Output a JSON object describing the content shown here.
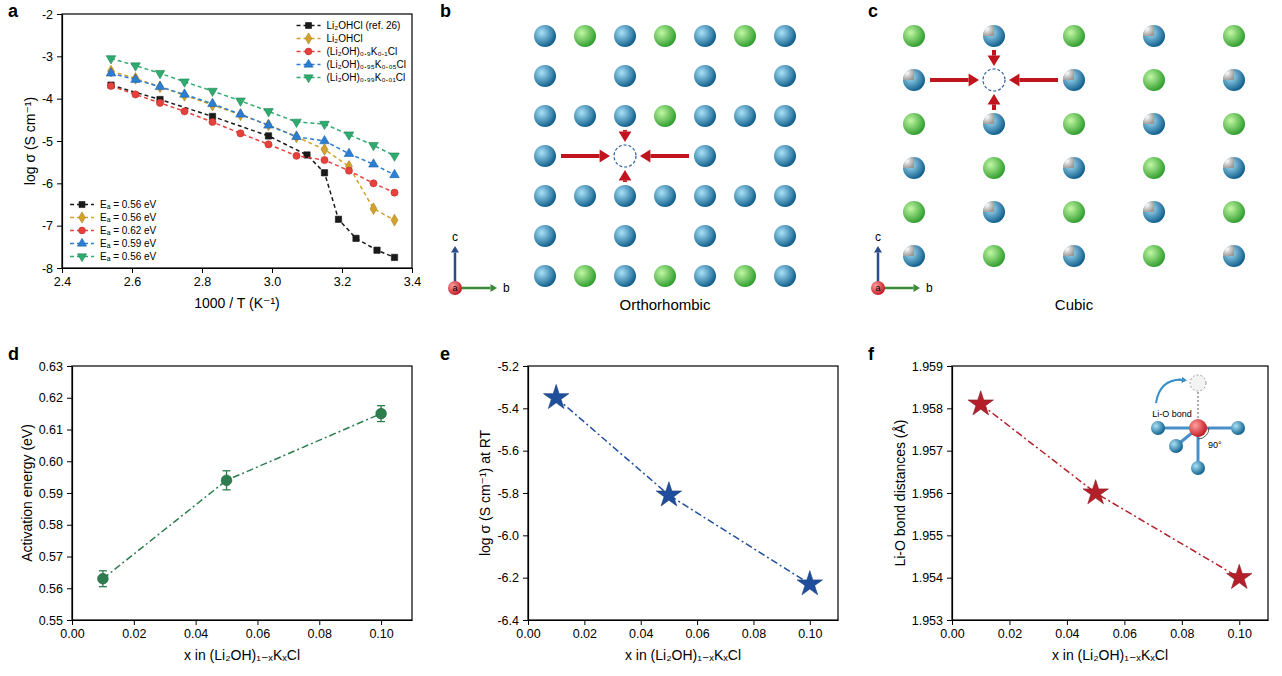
{
  "chart_data": [
    {
      "panel": "a",
      "type": "line",
      "x_label": "1000 / T (K⁻¹)",
      "y_label": "log σ (S cm⁻¹)",
      "xlim": [
        2.4,
        3.4
      ],
      "xticks": [
        2.4,
        2.6,
        2.8,
        {
          "value": 3,
          "label": "3.0"
        },
        3.2,
        3.4
      ],
      "ylim": [
        -8,
        -2
      ],
      "yticks": [
        -8,
        -7,
        -6,
        -5,
        -4,
        -3,
        -2
      ],
      "legend": "upper right",
      "series": [
        {
          "name": "Li₂OHCl (ref. 26)",
          "color": "#1a1a1a",
          "marker": "square",
          "line_style": "dashed",
          "x": [
            2.54,
            2.68,
            2.83,
            2.99,
            3.1,
            3.15,
            3.19,
            3.24,
            3.3,
            3.35
          ],
          "values": [
            -3.68,
            -4.02,
            -4.42,
            -4.88,
            -5.33,
            -5.75,
            -6.85,
            -7.3,
            -7.58,
            -7.75
          ]
        },
        {
          "name": "Li₂OHCl",
          "color": "#d4a12a",
          "marker": "diamond",
          "line_style": "dashed",
          "x": [
            2.54,
            2.61,
            2.68,
            2.75,
            2.83,
            2.91,
            2.99,
            3.07,
            3.15,
            3.22,
            3.29,
            3.35
          ],
          "values": [
            -3.35,
            -3.52,
            -3.72,
            -3.92,
            -4.15,
            -4.38,
            -4.62,
            -4.9,
            -5.2,
            -5.6,
            -6.6,
            -6.87
          ]
        },
        {
          "name": "(Li₂OH)₀.₉K₀.₁Cl",
          "color": "#e8413c",
          "marker": "circle",
          "line_style": "dashed",
          "x": [
            2.54,
            2.61,
            2.68,
            2.75,
            2.83,
            2.91,
            2.99,
            3.07,
            3.15,
            3.22,
            3.29,
            3.35
          ],
          "values": [
            -3.7,
            -3.9,
            -4.1,
            -4.3,
            -4.55,
            -4.82,
            -5.08,
            -5.35,
            -5.45,
            -5.7,
            -6.0,
            -6.22
          ]
        },
        {
          "name": "(Li₂OH)₀.₉₅K₀.₀₅Cl",
          "color": "#2a7fd4",
          "marker": "triangle",
          "line_style": "dashed",
          "x": [
            2.54,
            2.61,
            2.68,
            2.75,
            2.83,
            2.91,
            2.99,
            3.07,
            3.15,
            3.22,
            3.29,
            3.35
          ],
          "values": [
            -3.4,
            -3.55,
            -3.72,
            -3.9,
            -4.12,
            -4.37,
            -4.63,
            -4.9,
            -5.0,
            -5.3,
            -5.55,
            -5.8
          ]
        },
        {
          "name": "(Li₂OH)₀.₉₉K₀.₀₁Cl",
          "color": "#2eab6e",
          "marker": "triangle-down",
          "line_style": "dashed",
          "x": [
            2.54,
            2.61,
            2.68,
            2.75,
            2.83,
            2.91,
            2.99,
            3.07,
            3.15,
            3.22,
            3.29,
            3.35
          ],
          "values": [
            -3.05,
            -3.22,
            -3.4,
            -3.6,
            -3.82,
            -4.05,
            -4.3,
            -4.55,
            -4.6,
            -4.85,
            -5.1,
            -5.35
          ]
        }
      ],
      "annotations": [
        "Eₐ = 0.56 eV",
        "Eₐ = 0.56 eV",
        "Eₐ = 0.62 eV",
        "Eₐ = 0.59 eV",
        "Eₐ = 0.56 eV"
      ]
    },
    {
      "panel": "d",
      "type": "line",
      "x_label": "x in (Li₂OH)₁₋ₓKₓCl",
      "y_label": "Activation energy (eV)",
      "xlim": [
        0,
        0.11
      ],
      "xticks": [
        {
          "value": 0,
          "label": "0.00"
        },
        0.02,
        0.04,
        0.06,
        0.08,
        {
          "value": 0.1,
          "label": "0.10"
        }
      ],
      "ylim": [
        0.55,
        0.63
      ],
      "yticks": [
        0.55,
        0.56,
        0.57,
        0.58,
        0.59,
        {
          "value": 0.6,
          "label": "0.60"
        },
        0.61,
        0.62,
        0.63
      ],
      "color": "#2e7d4f",
      "marker": "circle",
      "line_style": "dash-dot",
      "x": [
        0.01,
        0.05,
        0.1
      ],
      "values": [
        0.563,
        0.594,
        0.615
      ],
      "error": [
        0.0025,
        0.003,
        0.0025
      ]
    },
    {
      "panel": "e",
      "type": "line",
      "x_label": "x in (Li₂OH)₁₋ₓKₓCl",
      "y_label": "log σ (S cm⁻¹) at RT",
      "xlim": [
        0,
        0.11
      ],
      "xticks": [
        {
          "value": 0,
          "label": "0.00"
        },
        0.02,
        0.04,
        0.06,
        0.08,
        {
          "value": 0.1,
          "label": "0.10"
        }
      ],
      "ylim": [
        -6.4,
        -5.2
      ],
      "yticks": [
        -6.4,
        -6.2,
        {
          "value": -6,
          "label": "-6.0"
        },
        -5.8,
        -5.6,
        -5.4,
        -5.2
      ],
      "color": "#1f4e9c",
      "marker": "star",
      "line_style": "dash-dot",
      "x": [
        0.01,
        0.05,
        0.1
      ],
      "values": [
        -5.35,
        -5.81,
        -6.23
      ]
    },
    {
      "panel": "f",
      "type": "line",
      "x_label": "x in (Li₂OH)₁₋ₓKₓCl",
      "y_label": "Li-O bond distances (Å)",
      "xlim": [
        0,
        0.11
      ],
      "xticks": [
        {
          "value": 0,
          "label": "0.00"
        },
        0.02,
        0.04,
        0.06,
        0.08,
        {
          "value": 0.1,
          "label": "0.10"
        }
      ],
      "ylim": [
        1.953,
        1.959
      ],
      "yticks": [
        1.953,
        1.954,
        1.955,
        1.956,
        1.957,
        1.958,
        1.959
      ],
      "color": "#b3202a",
      "marker": "star",
      "line_style": "dash-dot",
      "x": [
        0.01,
        0.05,
        0.1
      ],
      "values": [
        1.9581,
        1.956,
        1.954
      ],
      "annotations": [
        "Li-O bond",
        "90°"
      ]
    }
  ],
  "diagrams": [
    {
      "panel": "b",
      "caption": "Orthorhombic",
      "axes": {
        "vertical": "c",
        "horizontal": "b",
        "depth": "a"
      }
    },
    {
      "panel": "c",
      "caption": "Cubic",
      "axes": {
        "vertical": "c",
        "horizontal": "b",
        "depth": "a"
      }
    }
  ]
}
